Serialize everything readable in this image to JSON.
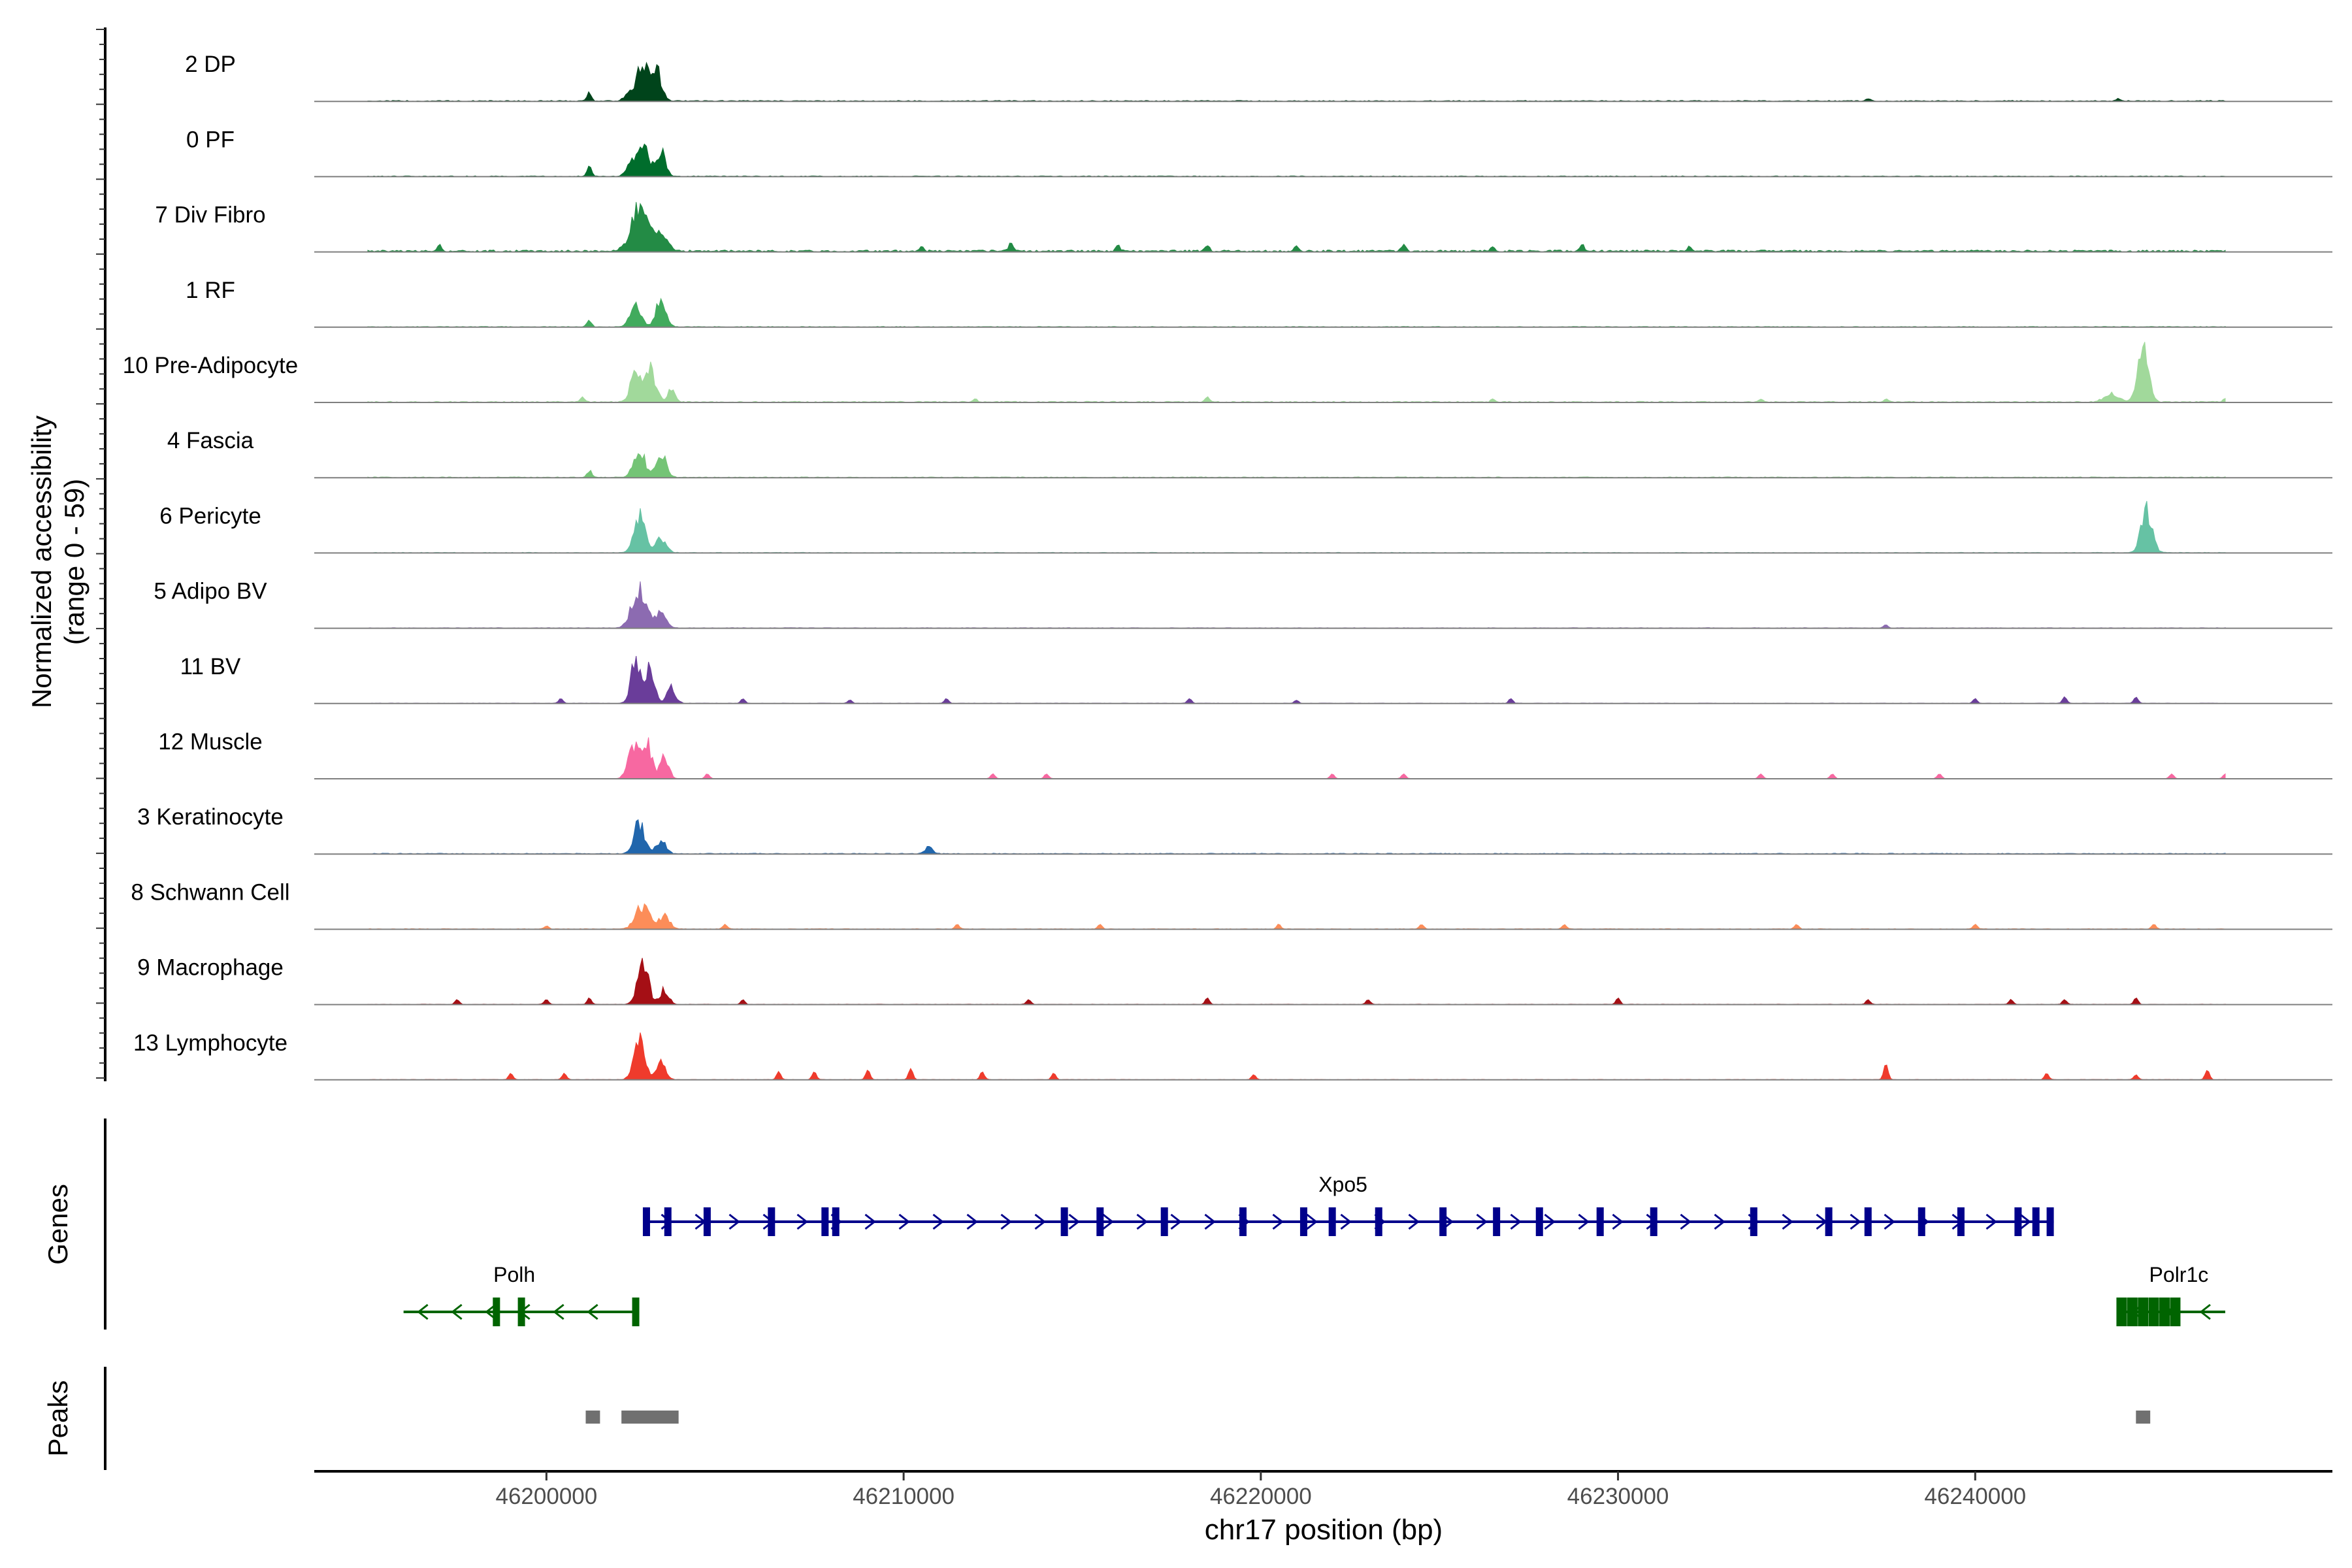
{
  "chart_data": {
    "type": "area",
    "title": "",
    "ylabel": "Normalized accessibility",
    "ylabel_range": "(range 0 - 59)",
    "ylim": [
      0,
      59
    ],
    "xlabel": "chr17 position (bp)",
    "xlim": [
      46193500,
      46250000
    ],
    "xticks": [
      46200000,
      46210000,
      46220000,
      46230000,
      46240000
    ],
    "xtick_labels": [
      "46200000",
      "46210000",
      "46220000",
      "46230000",
      "46240000"
    ],
    "tracks": [
      {
        "name": "2 DP",
        "color": "#00441b",
        "peaks": [
          [
            46202300,
            6,
            120
          ],
          [
            46202700,
            30,
            160
          ],
          [
            46203100,
            22,
            140
          ],
          [
            46201200,
            8,
            60
          ]
        ],
        "noise": 0.6,
        "spots": [
          [
            46237000,
            1.5
          ],
          [
            46244000,
            1.5
          ]
        ]
      },
      {
        "name": "0 PF",
        "color": "#006d2c",
        "peaks": [
          [
            46202350,
            10,
            120
          ],
          [
            46202700,
            28,
            150
          ],
          [
            46203200,
            20,
            130
          ],
          [
            46201200,
            10,
            60
          ]
        ],
        "noise": 0.5,
        "spots": []
      },
      {
        "name": "7 Div Fibro",
        "color": "#238b45",
        "peaks": [
          [
            46202600,
            38,
            220
          ],
          [
            46203200,
            14,
            180
          ]
        ],
        "noise": 1.2,
        "spots": [
          [
            46197000,
            4
          ],
          [
            46210500,
            3
          ],
          [
            46213000,
            5
          ],
          [
            46216000,
            4
          ],
          [
            46218500,
            4
          ],
          [
            46221000,
            3
          ],
          [
            46224000,
            4
          ],
          [
            46226500,
            3
          ],
          [
            46229000,
            4
          ],
          [
            46232000,
            3
          ]
        ]
      },
      {
        "name": "1 RF",
        "color": "#41ab5d",
        "peaks": [
          [
            46202500,
            18,
            150
          ],
          [
            46203200,
            20,
            140
          ],
          [
            46201200,
            6,
            60
          ]
        ],
        "noise": 0.5,
        "spots": []
      },
      {
        "name": "10 Pre-Adipocyte",
        "color": "#a1d99b",
        "peaks": [
          [
            46202500,
            22,
            150
          ],
          [
            46202900,
            28,
            150
          ],
          [
            46203500,
            10,
            100
          ],
          [
            46244700,
            42,
            150
          ],
          [
            46243800,
            6,
            200
          ]
        ],
        "noise": 0.7,
        "spots": [
          [
            46201000,
            3
          ],
          [
            46212000,
            2
          ],
          [
            46218500,
            3
          ],
          [
            46226500,
            2
          ],
          [
            46234000,
            2
          ],
          [
            46237500,
            2
          ],
          [
            46247000,
            2
          ]
        ]
      },
      {
        "name": "4 Fascia",
        "color": "#74c476",
        "peaks": [
          [
            46202600,
            22,
            150
          ],
          [
            46203200,
            20,
            140
          ],
          [
            46201200,
            6,
            60
          ]
        ],
        "noise": 0.5,
        "spots": []
      },
      {
        "name": "6 Pericyte",
        "color": "#66c2a4",
        "peaks": [
          [
            46202600,
            30,
            150
          ],
          [
            46203200,
            12,
            140
          ],
          [
            46244800,
            34,
            150
          ]
        ],
        "noise": 0.4,
        "spots": []
      },
      {
        "name": "5 Adipo BV",
        "color": "#8c6bb1",
        "peaks": [
          [
            46202600,
            32,
            200
          ],
          [
            46203200,
            12,
            140
          ]
        ],
        "noise": 0.4,
        "spots": [
          [
            46237500,
            2
          ]
        ]
      },
      {
        "name": "11 BV",
        "color": "#6a3d9a",
        "peaks": [
          [
            46202500,
            36,
            130
          ],
          [
            46202900,
            28,
            130
          ],
          [
            46203500,
            12,
            120
          ]
        ],
        "noise": 0.3,
        "spots": [
          [
            46200400,
            3
          ],
          [
            46205500,
            3
          ],
          [
            46208500,
            2
          ],
          [
            46211200,
            3
          ],
          [
            46218000,
            3
          ],
          [
            46221000,
            2
          ],
          [
            46227000,
            3
          ],
          [
            46240000,
            3
          ],
          [
            46242500,
            4
          ],
          [
            46244500,
            4
          ]
        ]
      },
      {
        "name": "12 Muscle",
        "color": "#f768a1",
        "peaks": [
          [
            46202400,
            30,
            130
          ],
          [
            46202800,
            32,
            130
          ],
          [
            46203300,
            18,
            120
          ]
        ],
        "noise": 0.2,
        "spots": [
          [
            46204500,
            3
          ],
          [
            46212500,
            3
          ],
          [
            46214000,
            3
          ],
          [
            46222000,
            3
          ],
          [
            46224000,
            3
          ],
          [
            46234000,
            3
          ],
          [
            46236000,
            3
          ],
          [
            46239000,
            3
          ],
          [
            46245500,
            3
          ],
          [
            46247000,
            3
          ]
        ]
      },
      {
        "name": "3 Keratinocyte",
        "color": "#2166ac",
        "peaks": [
          [
            46202600,
            24,
            150
          ],
          [
            46203200,
            10,
            140
          ],
          [
            46210700,
            6,
            100
          ]
        ],
        "noise": 0.5,
        "spots": []
      },
      {
        "name": "8 Schwann Cell",
        "color": "#fc8d59",
        "peaks": [
          [
            46202700,
            18,
            200
          ],
          [
            46203300,
            10,
            150
          ]
        ],
        "noise": 0.4,
        "spots": [
          [
            46200000,
            2
          ],
          [
            46205000,
            3
          ],
          [
            46211500,
            3
          ],
          [
            46215500,
            3
          ],
          [
            46220500,
            3
          ],
          [
            46224500,
            3
          ],
          [
            46228500,
            3
          ],
          [
            46235000,
            3
          ],
          [
            46240000,
            3
          ],
          [
            46245000,
            3
          ]
        ]
      },
      {
        "name": "9 Macrophage",
        "color": "#a50f15",
        "peaks": [
          [
            46202700,
            34,
            150
          ],
          [
            46203300,
            12,
            120
          ]
        ],
        "noise": 0.3,
        "spots": [
          [
            46197500,
            3
          ],
          [
            46200000,
            3
          ],
          [
            46201200,
            4
          ],
          [
            46205500,
            3
          ],
          [
            46213500,
            3
          ],
          [
            46218500,
            4
          ],
          [
            46223000,
            3
          ],
          [
            46230000,
            4
          ],
          [
            46237000,
            3
          ],
          [
            46241000,
            3
          ],
          [
            46242500,
            3
          ],
          [
            46244500,
            4
          ]
        ]
      },
      {
        "name": "13 Lymphocyte",
        "color": "#ef3b2c",
        "peaks": [
          [
            46202600,
            36,
            150
          ],
          [
            46203200,
            14,
            130
          ]
        ],
        "noise": 0.3,
        "spots": [
          [
            46199000,
            4
          ],
          [
            46200500,
            4
          ],
          [
            46206500,
            5
          ],
          [
            46207500,
            5
          ],
          [
            46209000,
            6
          ],
          [
            46210200,
            7
          ],
          [
            46212200,
            5
          ],
          [
            46214200,
            4
          ],
          [
            46219800,
            3
          ],
          [
            46237500,
            10
          ],
          [
            46242000,
            4
          ],
          [
            46244500,
            3
          ],
          [
            46246500,
            6
          ]
        ]
      }
    ],
    "genes_label": "Genes",
    "genes": [
      {
        "name": "Xpo5",
        "strand": "+",
        "color": "#00008b",
        "start": 46202800,
        "end": 46242200,
        "row": 0,
        "exons": [
          46202800,
          46203400,
          46204500,
          46206300,
          46207800,
          46208100,
          46214500,
          46215500,
          46217300,
          46219500,
          46221200,
          46222000,
          46223300,
          46225100,
          46226600,
          46227800,
          46229500,
          46231000,
          46233800,
          46235900,
          46237000,
          46238500,
          46239600,
          46241200,
          46241700,
          46242100
        ]
      },
      {
        "name": "Polh",
        "strand": "-",
        "color": "#006400",
        "start": 46196000,
        "end": 46202600,
        "row": 1,
        "exons": [
          46198600,
          46199300,
          46202500
        ]
      },
      {
        "name": "Polr1c",
        "strand": "-",
        "color": "#006400",
        "start": 46244000,
        "end": 46247000,
        "row": 1,
        "exons": [
          46244100,
          46244400,
          46244700,
          46245000,
          46245300,
          46245600
        ]
      }
    ],
    "peaks_label": "Peaks",
    "peak_regions": [
      [
        46201100,
        46201500
      ],
      [
        46202100,
        46203700
      ],
      [
        46244500,
        46244900
      ]
    ]
  }
}
